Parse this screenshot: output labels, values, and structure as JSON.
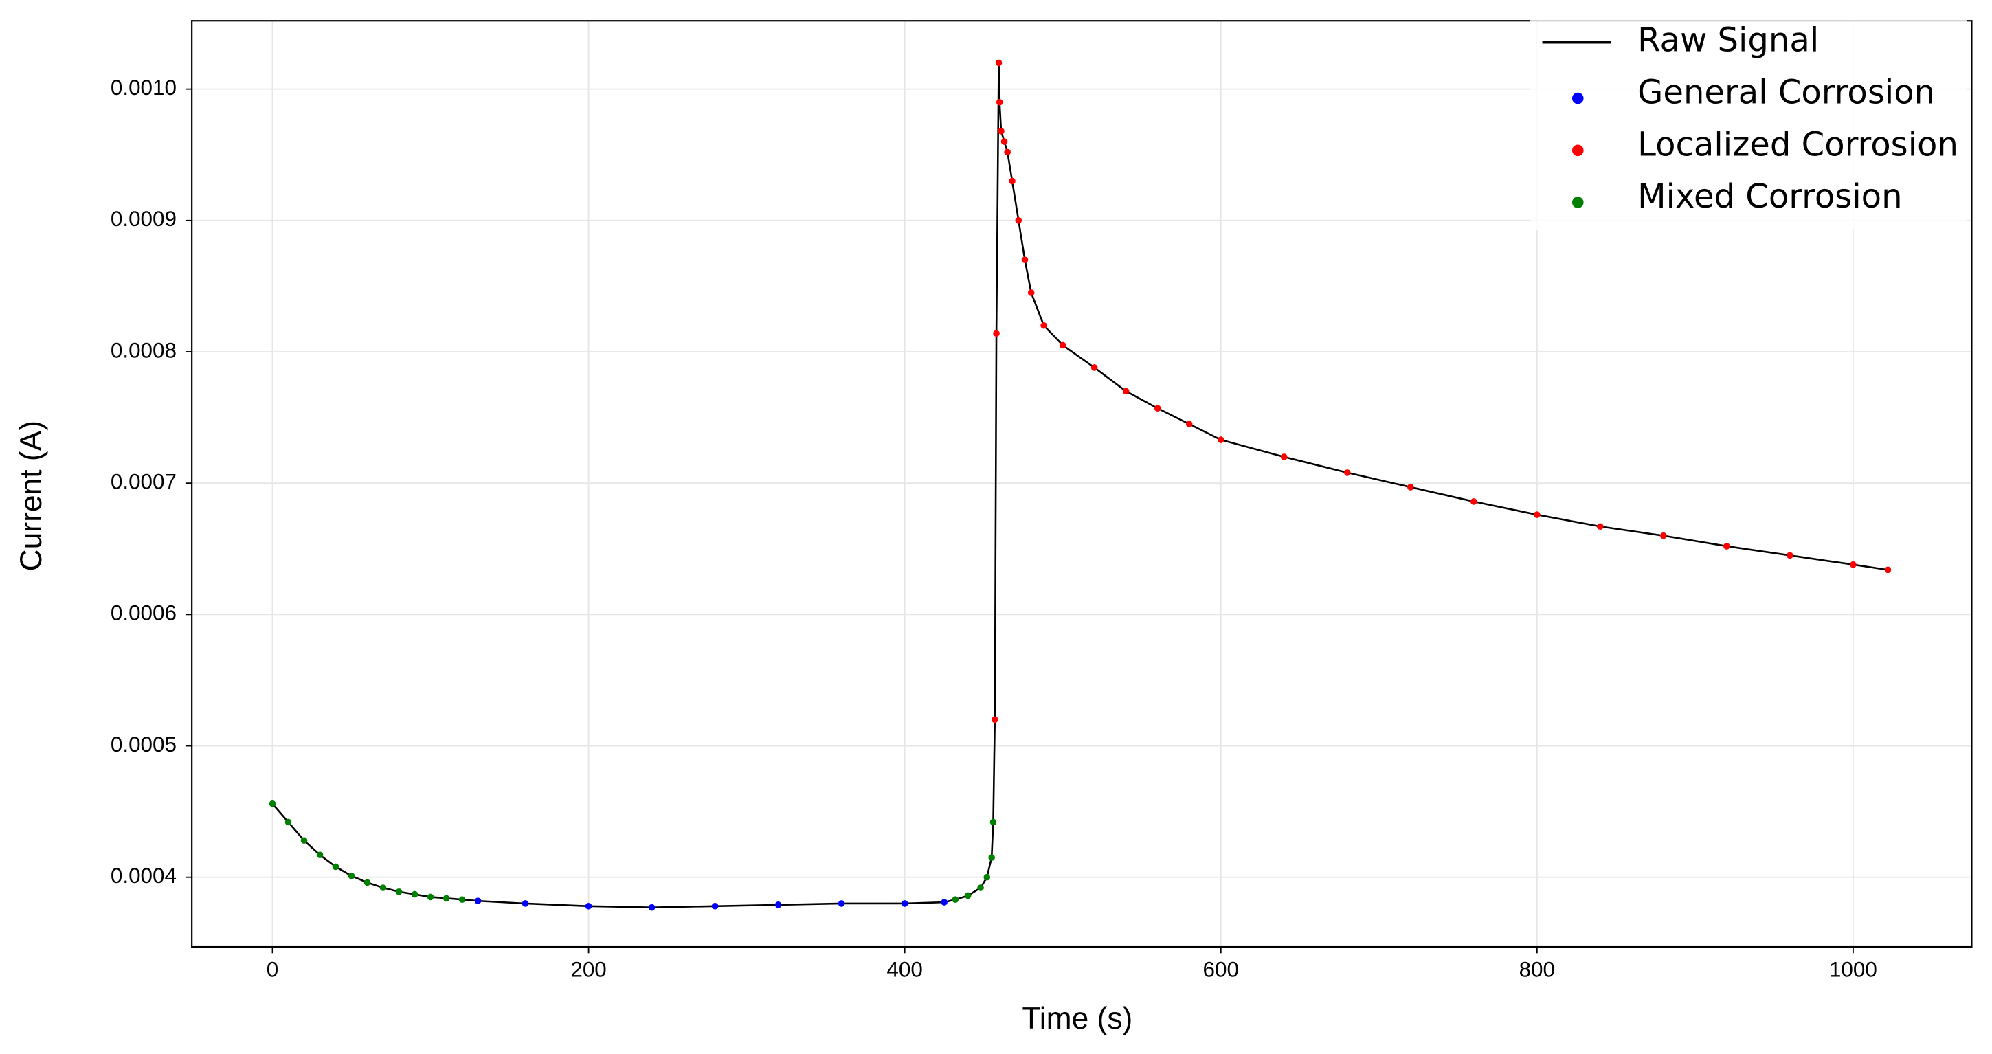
{
  "chart_data": {
    "type": "line_scatter",
    "x_label": "Time (s)",
    "y_label": "Current (A)",
    "xlim": [
      -51,
      1075
    ],
    "ylim": [
      0.000347,
      0.001052
    ],
    "xticks": [
      0,
      200,
      400,
      600,
      800,
      1000
    ],
    "yticks": [
      0.0004,
      0.0005,
      0.0006,
      0.0007,
      0.0008,
      0.0009,
      {
        "value": 0.001,
        "label": "0.0010"
      }
    ],
    "grid": true,
    "legend": "upper right",
    "series": [
      {
        "name": "Raw Signal",
        "kind": "line",
        "color": "#000000",
        "x": [
          0,
          10,
          20,
          30,
          40,
          50,
          60,
          70,
          80,
          90,
          100,
          110,
          120,
          130,
          160,
          200,
          240,
          280,
          320,
          360,
          400,
          425,
          432,
          440,
          448,
          452,
          455,
          456,
          457,
          458,
          459.5,
          460,
          461,
          463,
          465,
          468,
          472,
          476,
          480,
          488,
          500,
          520,
          540,
          560,
          580,
          600,
          640,
          680,
          720,
          760,
          800,
          840,
          880,
          920,
          960,
          1000,
          1022
        ],
        "values": [
          0.000456,
          0.000442,
          0.000428,
          0.000417,
          0.000408,
          0.000401,
          0.000396,
          0.000392,
          0.000389,
          0.000387,
          0.000385,
          0.000384,
          0.000383,
          0.000382,
          0.00038,
          0.000378,
          0.000377,
          0.000378,
          0.000379,
          0.00038,
          0.00038,
          0.000381,
          0.000383,
          0.000386,
          0.000392,
          0.0004,
          0.000415,
          0.000442,
          0.00052,
          0.000814,
          0.00102,
          0.00099,
          0.000968,
          0.00096,
          0.000952,
          0.00093,
          0.0009,
          0.00087,
          0.000845,
          0.00082,
          0.000805,
          0.000788,
          0.00077,
          0.000757,
          0.000745,
          0.000733,
          0.00072,
          0.000708,
          0.000697,
          0.000686,
          0.000676,
          0.000667,
          0.00066,
          0.000652,
          0.000645,
          0.000638,
          0.000634
        ]
      },
      {
        "name": "General Corrosion",
        "kind": "scatter",
        "color": "#0000ff",
        "x": [
          130,
          160,
          200,
          240,
          280,
          320,
          360,
          400,
          425
        ],
        "values": [
          0.000382,
          0.00038,
          0.000378,
          0.000377,
          0.000378,
          0.000379,
          0.00038,
          0.00038,
          0.000381
        ]
      },
      {
        "name": "Localized Corrosion",
        "kind": "scatter",
        "color": "#ff0000",
        "x": [
          457,
          458,
          459.5,
          460,
          461,
          463,
          465,
          468,
          472,
          476,
          480,
          488,
          500,
          520,
          540,
          560,
          580,
          600,
          640,
          680,
          720,
          760,
          800,
          840,
          880,
          920,
          960,
          1000,
          1022
        ],
        "values": [
          0.00052,
          0.000814,
          0.00102,
          0.00099,
          0.000968,
          0.00096,
          0.000952,
          0.00093,
          0.0009,
          0.00087,
          0.000845,
          0.00082,
          0.000805,
          0.000788,
          0.00077,
          0.000757,
          0.000745,
          0.000733,
          0.00072,
          0.000708,
          0.000697,
          0.000686,
          0.000676,
          0.000667,
          0.00066,
          0.000652,
          0.000645,
          0.000638,
          0.000634
        ]
      },
      {
        "name": "Mixed Corrosion",
        "kind": "scatter",
        "color": "#008000",
        "x": [
          0,
          10,
          20,
          30,
          40,
          50,
          60,
          70,
          80,
          90,
          100,
          110,
          120,
          432,
          440,
          448,
          452,
          455,
          456
        ],
        "values": [
          0.000456,
          0.000442,
          0.000428,
          0.000417,
          0.000408,
          0.000401,
          0.000396,
          0.000392,
          0.000389,
          0.000387,
          0.000385,
          0.000384,
          0.000383,
          0.000383,
          0.000386,
          0.000392,
          0.0004,
          0.000415,
          0.000442
        ]
      }
    ]
  }
}
